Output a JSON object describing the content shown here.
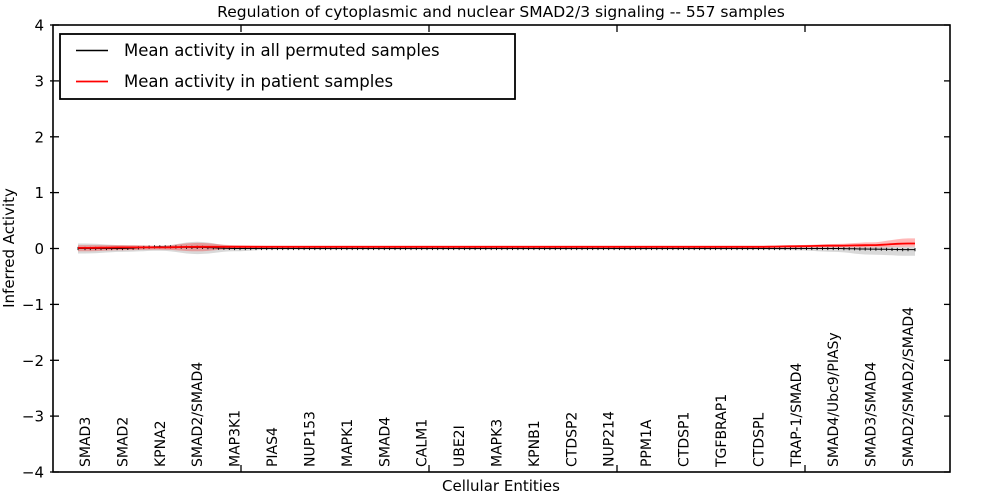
{
  "chart_data": {
    "type": "line",
    "title": "Regulation of cytoplasmic and nuclear SMAD2/3 signaling -- 557 samples",
    "xlabel": "Cellular Entities",
    "ylabel": "Inferred Activity",
    "ylim": [
      -4,
      4
    ],
    "yticks": [
      4,
      3,
      2,
      1,
      0,
      -1,
      -2,
      -3,
      -4
    ],
    "grid": false,
    "legend": {
      "position": "upper left",
      "entries": [
        {
          "label": "Mean activity in all permuted samples",
          "color": "#000000"
        },
        {
          "label": "Mean activity in patient samples",
          "color": "#ff0000"
        }
      ]
    },
    "categories": [
      "SMAD3",
      "SMAD2",
      "KPNA2",
      "SMAD2/SMAD4",
      "MAP3K1",
      "PIAS4",
      "NUP153",
      "MAPK1",
      "SMAD4",
      "CALM1",
      "UBE2I",
      "MAPK3",
      "KPNB1",
      "CTDSP2",
      "NUP214",
      "PPM1A",
      "CTDSP1",
      "TGFBRAP1",
      "CTDSPL",
      "TRAP-1/SMAD4",
      "SMAD4/Ubc9/PIASy",
      "SMAD3/SMAD4",
      "SMAD2/SMAD2/SMAD4"
    ],
    "points_between_labels": 7,
    "series": [
      {
        "name": "Mean activity in all permuted samples",
        "color": "#000000",
        "marker": "|",
        "band_color": "#000000",
        "band_opacity": 0.15,
        "values": [
          0.0,
          0.0,
          0.03,
          0.02,
          0.0,
          0.0,
          0.0,
          0.0,
          0.0,
          0.0,
          0.0,
          0.0,
          0.0,
          0.0,
          0.0,
          0.0,
          0.0,
          0.0,
          0.0,
          0.0,
          0.0,
          -0.01,
          -0.02
        ],
        "band_upper": [
          0.09,
          0.06,
          0.05,
          0.12,
          0.05,
          0.02,
          0.02,
          0.02,
          0.02,
          0.02,
          0.02,
          0.02,
          0.02,
          0.02,
          0.02,
          0.02,
          0.02,
          0.02,
          0.02,
          0.02,
          0.03,
          0.03,
          0.03
        ],
        "band_lower": [
          -0.09,
          -0.06,
          -0.04,
          -0.1,
          -0.05,
          -0.02,
          -0.02,
          -0.02,
          -0.02,
          -0.02,
          -0.02,
          -0.02,
          -0.02,
          -0.02,
          -0.02,
          -0.02,
          -0.02,
          -0.02,
          -0.02,
          -0.03,
          -0.06,
          -0.11,
          -0.13
        ]
      },
      {
        "name": "Mean activity in patient samples",
        "color": "#ff0000",
        "marker": "none",
        "band_color": "#ff0000",
        "band_opacity": 0.28,
        "values": [
          0.01,
          0.02,
          0.02,
          0.03,
          0.03,
          0.03,
          0.03,
          0.03,
          0.03,
          0.03,
          0.03,
          0.03,
          0.03,
          0.03,
          0.03,
          0.03,
          0.03,
          0.03,
          0.03,
          0.04,
          0.05,
          0.06,
          0.09
        ],
        "band_upper": [
          0.06,
          0.06,
          0.05,
          0.1,
          0.06,
          0.05,
          0.05,
          0.05,
          0.05,
          0.05,
          0.05,
          0.05,
          0.05,
          0.05,
          0.05,
          0.05,
          0.05,
          0.05,
          0.05,
          0.06,
          0.08,
          0.11,
          0.18
        ],
        "band_lower": [
          -0.05,
          -0.03,
          -0.02,
          -0.05,
          -0.01,
          0.01,
          0.01,
          0.01,
          0.01,
          0.01,
          0.01,
          0.01,
          0.01,
          0.01,
          0.01,
          0.01,
          0.01,
          0.01,
          0.01,
          0.01,
          0.02,
          0.02,
          0.03
        ]
      }
    ]
  }
}
